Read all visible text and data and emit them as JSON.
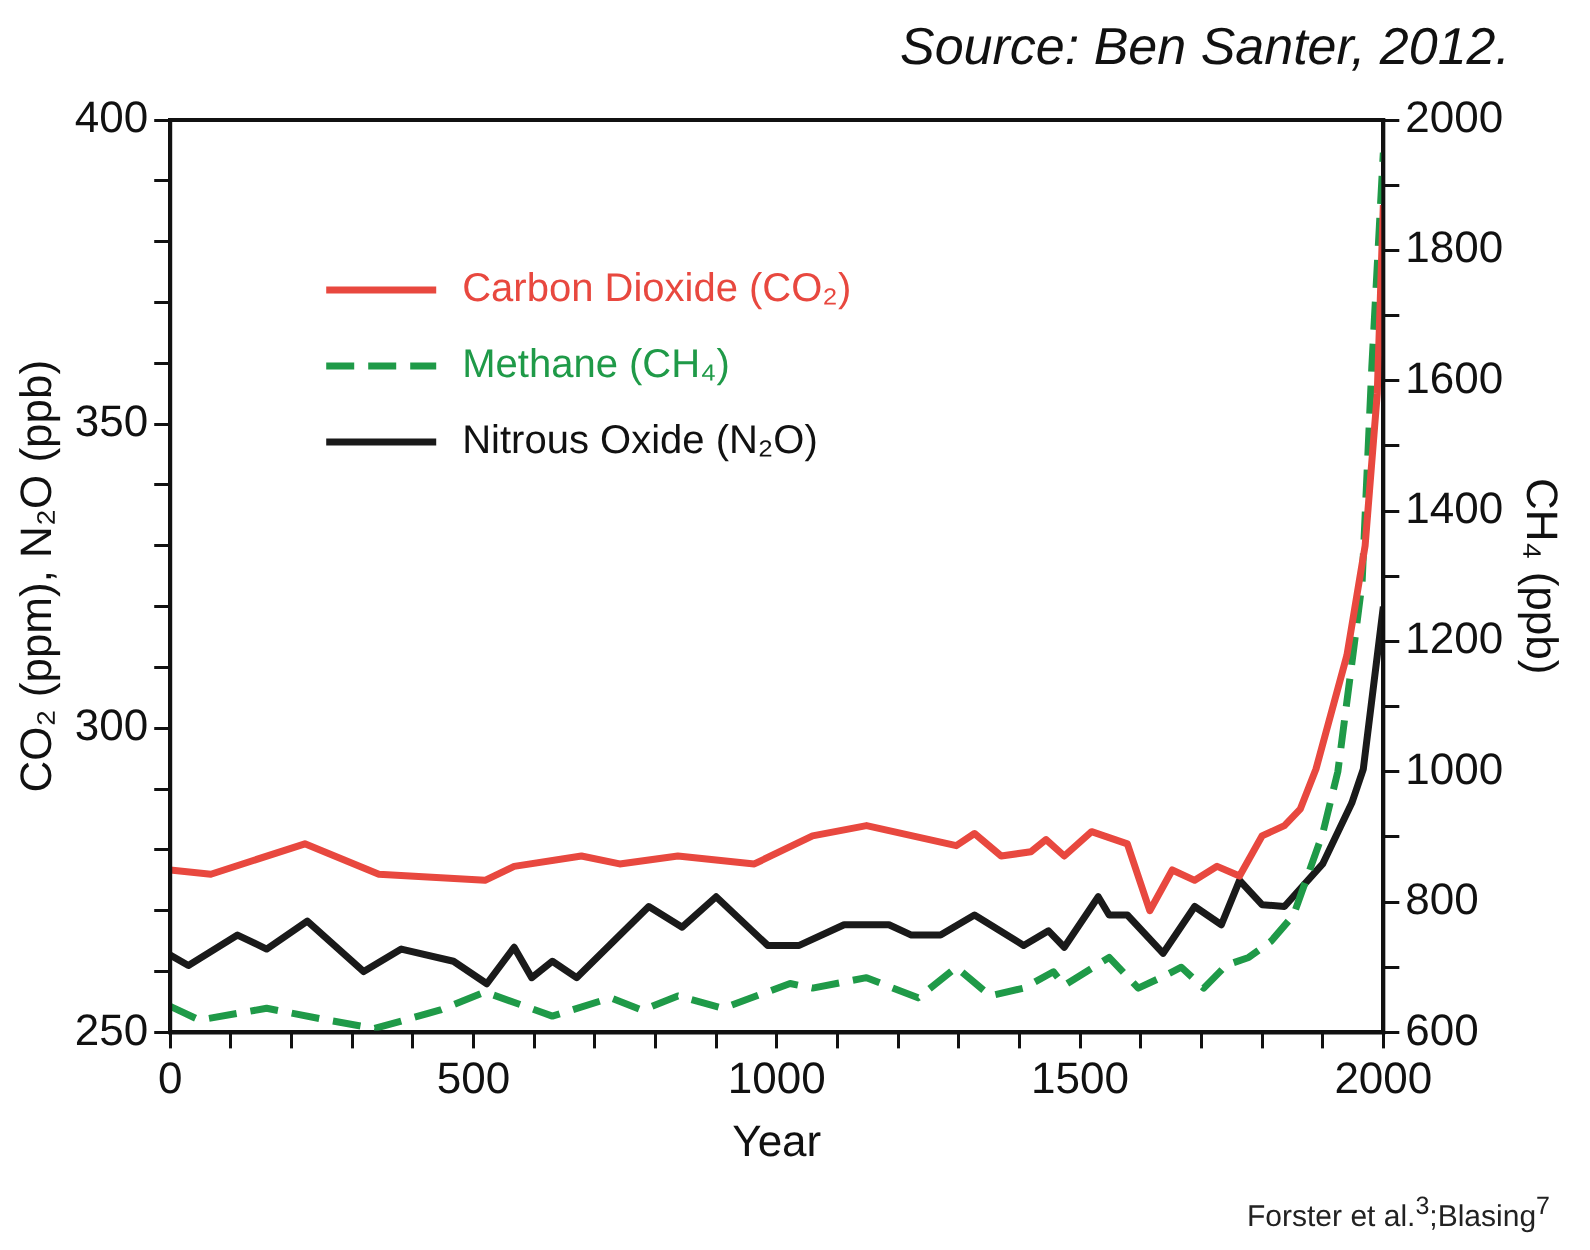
{
  "chart_data": {
    "type": "line",
    "xlabel": "Year",
    "ylabel": "CO₂ (ppm), N₂O (ppb)",
    "y2label": "CH₄ (ppb)",
    "annotations": [
      "Source: Ben Santer, 2012.",
      "Forster et al.$^{3}$;Blasing$^{7}$"
    ],
    "xlim": [
      0,
      2000
    ],
    "xticks": [
      0,
      {
        "value": 100,
        "label": null
      },
      {
        "value": 200,
        "label": null
      },
      {
        "value": 300,
        "label": null
      },
      {
        "value": 400,
        "label": null
      },
      500,
      {
        "value": 600,
        "label": null
      },
      {
        "value": 700,
        "label": null
      },
      {
        "value": 800,
        "label": null
      },
      {
        "value": 900,
        "label": null
      },
      1000,
      {
        "value": 1100,
        "label": null
      },
      {
        "value": 1200,
        "label": null
      },
      {
        "value": 1300,
        "label": null
      },
      {
        "value": 1400,
        "label": null
      },
      1500,
      {
        "value": 1600,
        "label": null
      },
      {
        "value": 1700,
        "label": null
      },
      {
        "value": 1800,
        "label": null
      },
      {
        "value": 1900,
        "label": null
      },
      2000
    ],
    "ylim": [
      250,
      400
    ],
    "yticks": [
      250,
      {
        "value": 260,
        "label": null
      },
      {
        "value": 270,
        "label": null
      },
      {
        "value": 280,
        "label": null
      },
      {
        "value": 290,
        "label": null
      },
      300,
      {
        "value": 310,
        "label": null
      },
      {
        "value": 320,
        "label": null
      },
      {
        "value": 330,
        "label": null
      },
      {
        "value": 340,
        "label": null
      },
      350,
      {
        "value": 360,
        "label": null
      },
      {
        "value": 370,
        "label": null
      },
      {
        "value": 380,
        "label": null
      },
      {
        "value": 390,
        "label": null
      },
      400
    ],
    "y2lim": [
      600,
      2000
    ],
    "y2ticks": [
      600,
      {
        "value": 700,
        "label": null
      },
      800,
      {
        "value": 900,
        "label": null
      },
      1000,
      {
        "value": 1100,
        "label": null
      },
      1200,
      {
        "value": 1300,
        "label": null
      },
      1400,
      {
        "value": 1500,
        "label": null
      },
      1600,
      {
        "value": 1700,
        "label": null
      },
      1800,
      {
        "value": 1900,
        "label": null
      },
      2000
    ],
    "grid": false,
    "legend": "top left",
    "marker": "none",
    "series": [
      {
        "name": "Carbon Dioxide (CO₂)",
        "color": "#e8483f",
        "line_style": "solid",
        "x": [
          0,
          67,
          222,
          344,
          519,
          567,
          678,
          741,
          837,
          963,
          1059,
          1148,
          1296,
          1326,
          1370,
          1419,
          1444,
          1474,
          1519,
          1578,
          1615,
          1652,
          1689,
          1726,
          1763,
          1800,
          1837,
          1863,
          1889,
          1940,
          1970,
          1990,
          2000
        ],
        "values": [
          276.7,
          276,
          281,
          276,
          275,
          277.3,
          279,
          277.7,
          279,
          277.7,
          282.3,
          284,
          280.7,
          282.7,
          279,
          279.7,
          281.7,
          279,
          283,
          281,
          270,
          276.7,
          275,
          277.3,
          275.7,
          282.3,
          284,
          286.7,
          293.3,
          312,
          330,
          355,
          386
        ]
      },
      {
        "name": "Methane (CH₄)",
        "color": "#1f9a48",
        "line_style": "dashed",
        "axis": "y2",
        "x": [
          0,
          48,
          159,
          259,
          337,
          444,
          519,
          630,
          726,
          778,
          837,
          911,
          1022,
          1059,
          1148,
          1233,
          1296,
          1352,
          1407,
          1456,
          1474,
          1548,
          1596,
          1633,
          1667,
          1704,
          1741,
          1778,
          1815,
          1852,
          1900,
          1925,
          1950,
          1965,
          1981,
          2000
        ],
        "values": [
          640,
          619,
          637,
          619,
          606,
          634,
          662,
          625,
          653,
          634,
          656,
          637,
          675,
          668,
          684,
          653,
          700,
          656,
          668,
          693,
          672,
          715,
          668,
          684,
          700,
          668,
          703,
          715,
          740,
          780,
          905,
          1000,
          1180,
          1290,
          1620,
          1950
        ]
      },
      {
        "name": "Nitrous Oxide (N₂O)",
        "color": "#1a1a1a",
        "line_style": "solid",
        "x": [
          0,
          30,
          111,
          159,
          226,
          319,
          381,
          467,
          522,
          567,
          596,
          630,
          670,
          789,
          844,
          900,
          985,
          1037,
          1111,
          1185,
          1222,
          1270,
          1326,
          1407,
          1448,
          1474,
          1530,
          1548,
          1578,
          1637,
          1689,
          1733,
          1763,
          1800,
          1837,
          1900,
          1948,
          1967,
          2000
        ],
        "values": [
          262.7,
          261,
          266,
          263.7,
          268.3,
          260,
          263.7,
          261.7,
          258,
          264,
          259,
          261.7,
          259,
          270.7,
          267.3,
          272.3,
          264.3,
          264.3,
          267.7,
          267.7,
          266,
          266,
          269.3,
          264.3,
          266.7,
          264,
          272.3,
          269.3,
          269.3,
          263,
          270.7,
          267.7,
          275,
          271,
          270.7,
          277.7,
          287.7,
          293.3,
          320
        ]
      }
    ]
  }
}
